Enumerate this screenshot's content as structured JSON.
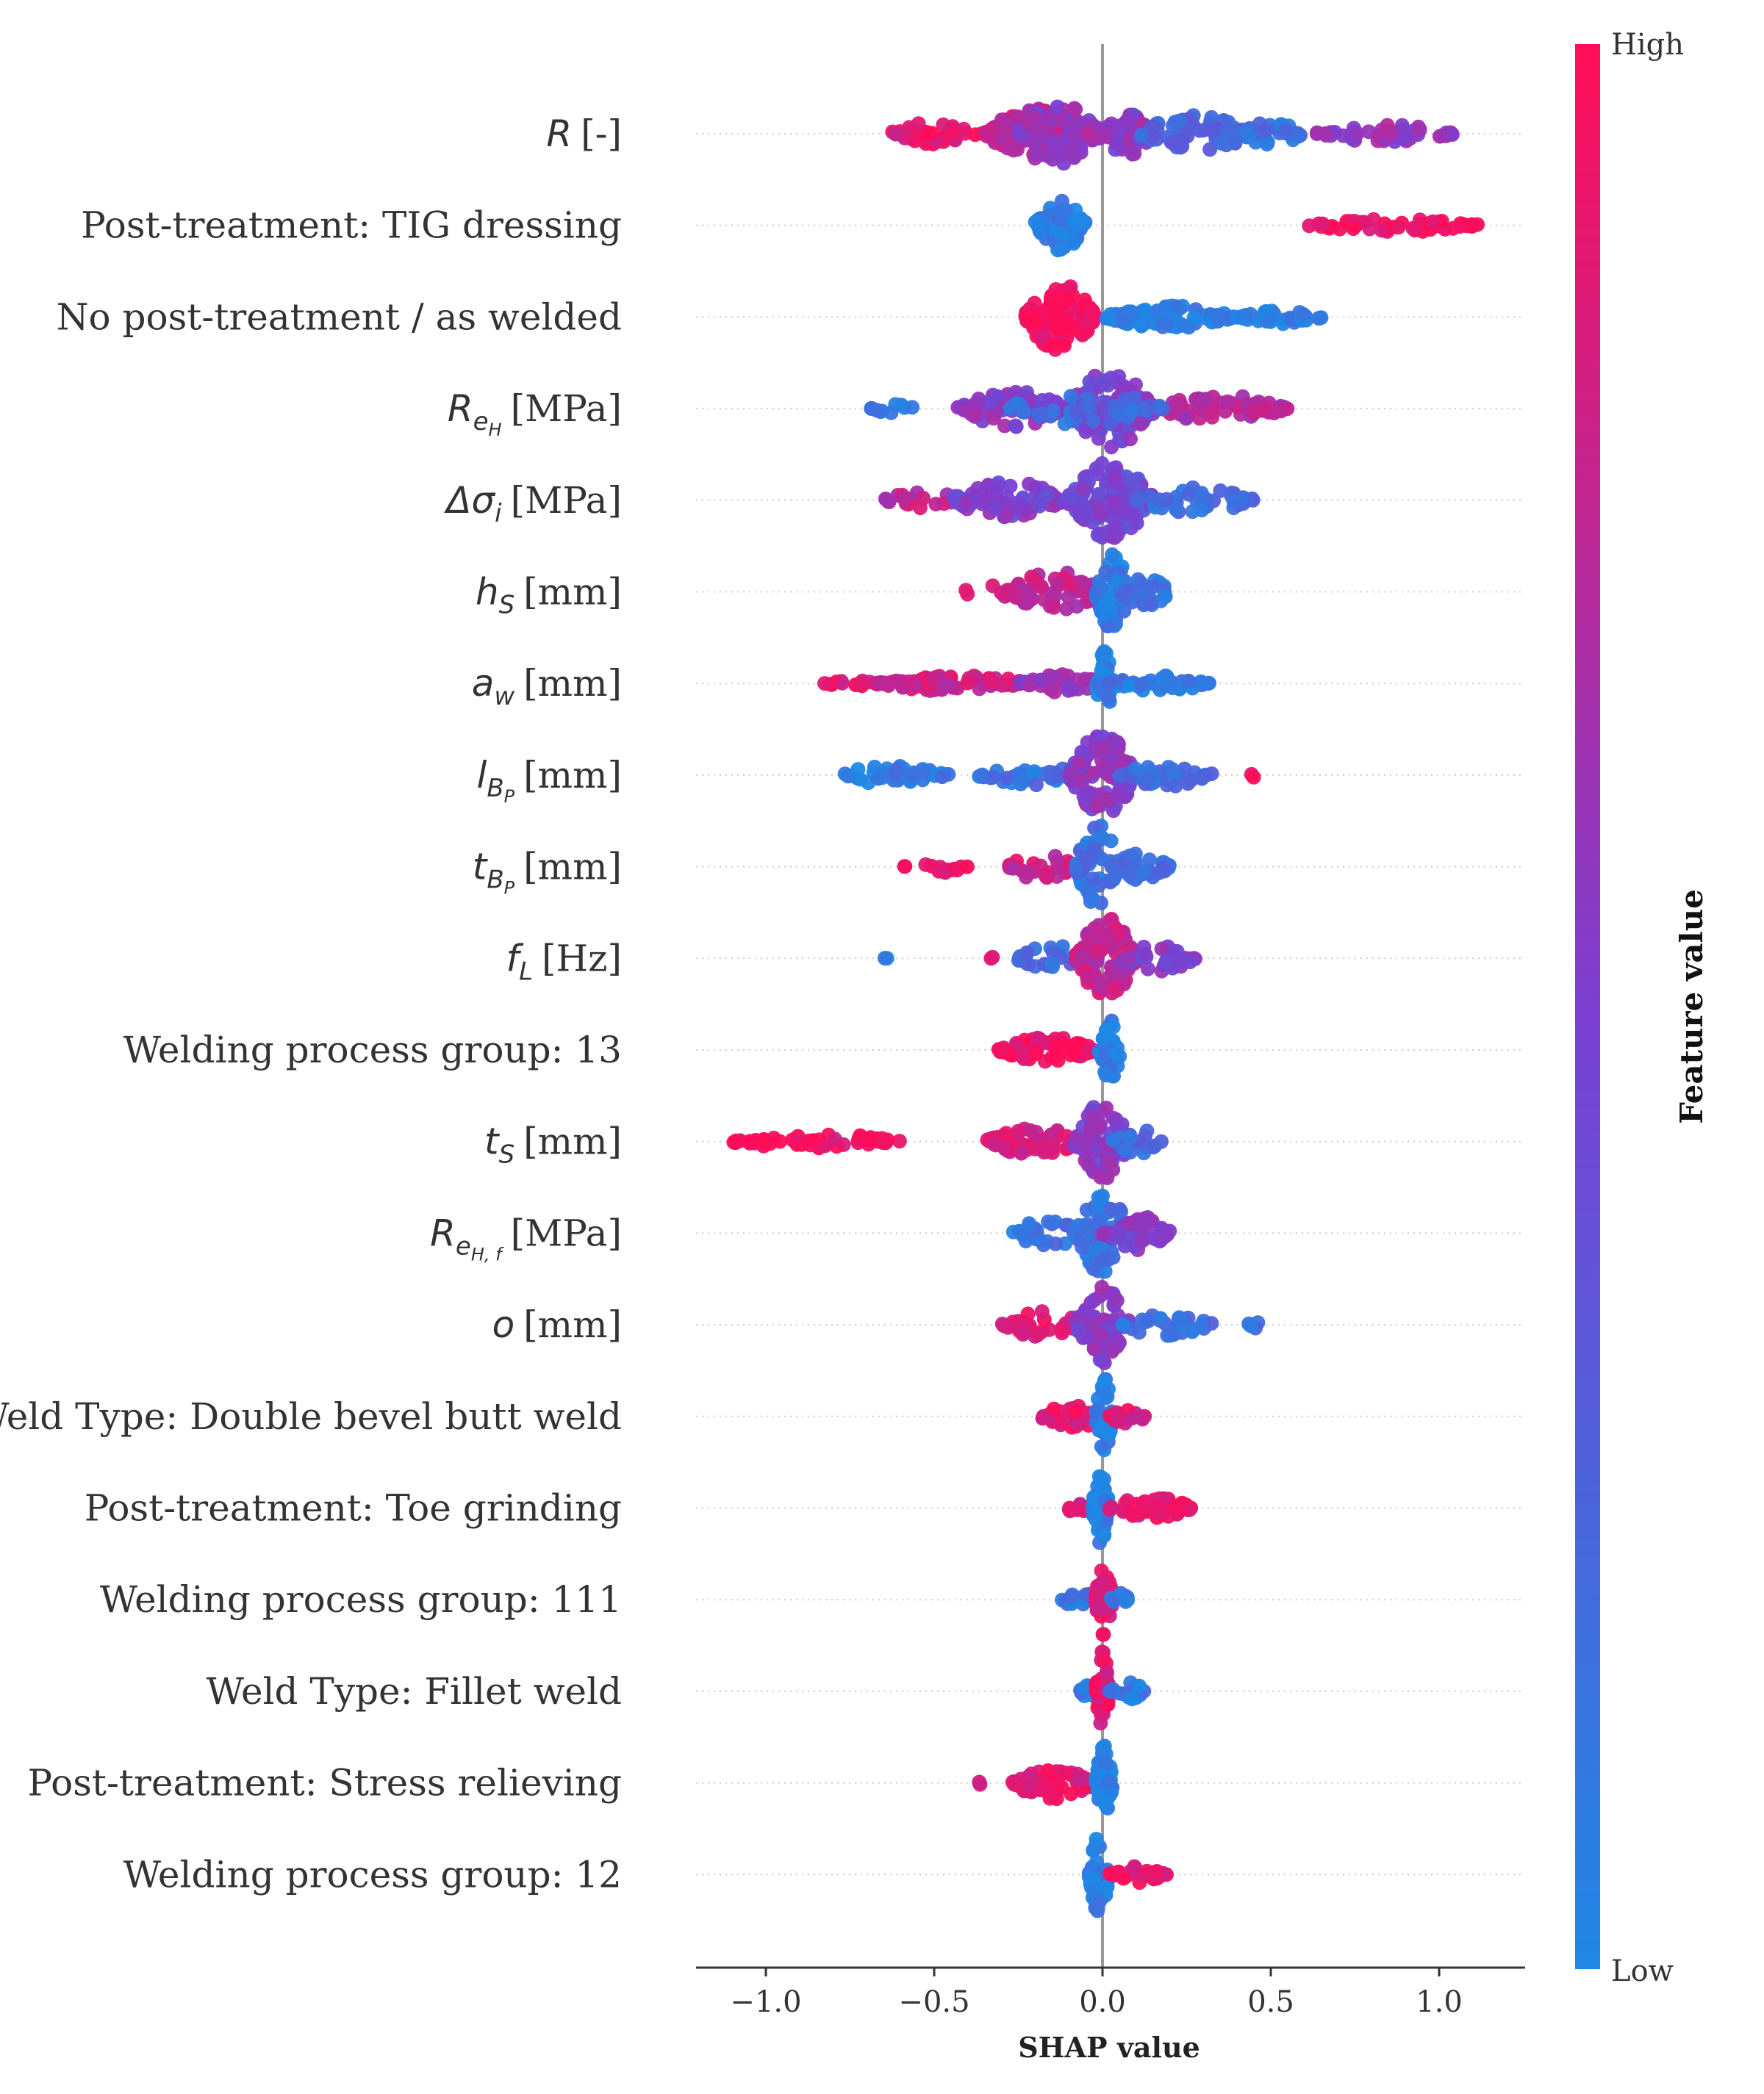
{
  "chart_data": {
    "type": "scatter",
    "subtype": "beeswarm",
    "title": "",
    "xlabel": "SHAP value",
    "ylabel": "",
    "xlim": [
      -1.2,
      1.27
    ],
    "xticks": [
      -1.0,
      -0.5,
      0.0,
      0.5,
      1.0
    ],
    "xtick_labels": [
      "−1.0",
      "−0.5",
      "0.0",
      "0.5",
      "1.0"
    ],
    "grid": false,
    "zero_line": true,
    "colorbar": {
      "title": "Feature value",
      "high_label": "High",
      "low_label": "Low",
      "high_color": "#ff0d57",
      "mid_color": "#7c3fd1",
      "low_color": "#1e88e5"
    },
    "features": [
      {
        "name": "R",
        "sub": "",
        "subsub": "",
        "unit": "[-]",
        "groups": [
          [
            -0.65,
            -0.35,
            "high",
            40,
            0.25,
            0.1
          ],
          [
            -0.35,
            -0.05,
            "high",
            120,
            0.55,
            0.25
          ],
          [
            -0.25,
            0.0,
            "mid",
            90,
            0.7,
            0.4
          ],
          [
            0.0,
            0.15,
            "mid",
            60,
            0.5,
            0.45
          ],
          [
            0.1,
            0.45,
            "low",
            80,
            0.4,
            0.75
          ],
          [
            0.4,
            0.6,
            "low",
            30,
            0.25,
            0.85
          ],
          [
            0.63,
            1.05,
            "mid",
            50,
            0.2,
            0.4
          ]
        ]
      },
      {
        "name": "Post-treatment: TIG dressing",
        "sub": "",
        "subsub": "",
        "unit": "",
        "groups": [
          [
            -0.2,
            -0.05,
            "low",
            70,
            0.55,
            0.95
          ],
          [
            0.61,
            1.12,
            "high",
            50,
            0.15,
            0.02
          ]
        ]
      },
      {
        "name": "No post-treatment / as welded",
        "sub": "",
        "subsub": "",
        "unit": "",
        "groups": [
          [
            -0.23,
            -0.02,
            "high",
            130,
            0.8,
            0.02
          ],
          [
            0.0,
            0.4,
            "low",
            80,
            0.25,
            0.95
          ],
          [
            0.4,
            0.66,
            "low",
            35,
            0.15,
            0.95
          ]
        ]
      },
      {
        "name": "R",
        "sub": "e",
        "subsub": "H",
        "unit": "[MPa]",
        "groups": [
          [
            -0.7,
            -0.55,
            "low",
            10,
            0.1,
            0.9
          ],
          [
            -0.43,
            -0.1,
            "mid",
            80,
            0.4,
            0.45
          ],
          [
            -0.1,
            0.15,
            "mid",
            120,
            0.85,
            0.5
          ],
          [
            0.15,
            0.55,
            "high",
            70,
            0.3,
            0.3
          ],
          [
            -0.3,
            0.2,
            "low",
            40,
            0.4,
            0.8
          ]
        ]
      },
      {
        "name": "Δσ",
        "sub": "i",
        "subsub": "",
        "unit": "[MPa]",
        "groups": [
          [
            -0.65,
            -0.4,
            "high",
            20,
            0.2,
            0.25
          ],
          [
            -0.45,
            -0.1,
            "mid",
            70,
            0.4,
            0.5
          ],
          [
            -0.1,
            0.15,
            "mid",
            140,
            0.85,
            0.55
          ],
          [
            0.1,
            0.45,
            "low",
            50,
            0.3,
            0.8
          ]
        ]
      },
      {
        "name": "h",
        "sub": "S",
        "subsub": "",
        "unit": "[mm]",
        "groups": [
          [
            -0.42,
            -0.25,
            "high",
            10,
            0.15,
            0.2
          ],
          [
            -0.28,
            0.0,
            "high",
            70,
            0.45,
            0.25
          ],
          [
            -0.02,
            0.08,
            "low",
            60,
            0.85,
            0.9
          ],
          [
            0.05,
            0.2,
            "low",
            30,
            0.35,
            0.85
          ]
        ]
      },
      {
        "name": "a",
        "sub": "w",
        "subsub": "",
        "unit": "[mm]",
        "groups": [
          [
            -0.83,
            -0.67,
            "high",
            15,
            0.1,
            0.1
          ],
          [
            -0.67,
            -0.2,
            "high",
            80,
            0.18,
            0.2
          ],
          [
            -0.25,
            0.0,
            "mid",
            30,
            0.2,
            0.4
          ],
          [
            -0.02,
            0.03,
            "low",
            30,
            0.75,
            0.95
          ],
          [
            0.02,
            0.32,
            "low",
            50,
            0.18,
            0.9
          ]
        ]
      },
      {
        "name": "l",
        "sub": "B",
        "subsub": "P",
        "unit": "[mm]",
        "groups": [
          [
            -0.8,
            -0.45,
            "low",
            40,
            0.2,
            0.9
          ],
          [
            -0.37,
            -0.05,
            "low",
            40,
            0.22,
            0.85
          ],
          [
            -0.1,
            0.1,
            "mid",
            100,
            0.9,
            0.45
          ],
          [
            0.05,
            0.33,
            "low",
            40,
            0.25,
            0.8
          ],
          [
            0.44,
            0.46,
            "high",
            2,
            0.05,
            0.05
          ]
        ]
      },
      {
        "name": "t",
        "sub": "B",
        "subsub": "P",
        "unit": "[mm]",
        "groups": [
          [
            -0.6,
            -0.4,
            "high",
            14,
            0.15,
            0.1
          ],
          [
            -0.28,
            -0.08,
            "high",
            30,
            0.3,
            0.2
          ],
          [
            -0.08,
            0.05,
            "low",
            60,
            0.95,
            0.85
          ],
          [
            0.03,
            0.2,
            "low",
            40,
            0.3,
            0.8
          ]
        ]
      },
      {
        "name": "f",
        "sub": "L",
        "subsub": "",
        "unit": "[Hz]",
        "groups": [
          [
            -0.65,
            -0.63,
            "low",
            2,
            0.05,
            0.9
          ],
          [
            -0.34,
            -0.32,
            "high",
            2,
            0.05,
            0.1
          ],
          [
            -0.25,
            -0.05,
            "low",
            25,
            0.3,
            0.8
          ],
          [
            -0.08,
            0.1,
            "high",
            100,
            0.9,
            0.25
          ],
          [
            0.05,
            0.28,
            "mid",
            30,
            0.3,
            0.5
          ]
        ]
      },
      {
        "name": "Welding process group: 13",
        "sub": "",
        "subsub": "",
        "unit": "",
        "groups": [
          [
            -0.31,
            -0.02,
            "high",
            80,
            0.3,
            0.05
          ],
          [
            -0.01,
            0.06,
            "low",
            40,
            0.7,
            0.95
          ]
        ]
      },
      {
        "name": "t",
        "sub": "S",
        "subsub": "",
        "unit": "[mm]",
        "groups": [
          [
            -1.1,
            -0.6,
            "high",
            50,
            0.18,
            0.05
          ],
          [
            -0.35,
            -0.05,
            "high",
            60,
            0.3,
            0.15
          ],
          [
            -0.08,
            0.08,
            "mid",
            90,
            0.85,
            0.45
          ],
          [
            0.03,
            0.18,
            "low",
            25,
            0.3,
            0.8
          ]
        ]
      },
      {
        "name": "R",
        "sub": "e",
        "subsub": "H, f",
        "unit": "[MPa]",
        "groups": [
          [
            -0.27,
            -0.05,
            "low",
            30,
            0.3,
            0.85
          ],
          [
            -0.08,
            0.08,
            "low",
            70,
            0.9,
            0.85
          ],
          [
            0.0,
            0.2,
            "mid",
            50,
            0.4,
            0.5
          ]
        ]
      },
      {
        "name": "o",
        "sub": "",
        "subsub": "",
        "unit": "[mm]",
        "groups": [
          [
            -0.3,
            -0.05,
            "high",
            40,
            0.3,
            0.15
          ],
          [
            -0.08,
            0.08,
            "mid",
            80,
            0.85,
            0.45
          ],
          [
            0.05,
            0.33,
            "low",
            30,
            0.25,
            0.85
          ],
          [
            0.43,
            0.47,
            "low",
            4,
            0.1,
            0.85
          ]
        ]
      },
      {
        "name": "Weld Type: Double bevel butt weld",
        "sub": "",
        "subsub": "",
        "unit": "",
        "groups": [
          [
            -0.18,
            0.0,
            "high",
            40,
            0.28,
            0.1
          ],
          [
            -0.02,
            0.03,
            "low",
            40,
            0.85,
            0.95
          ],
          [
            0.02,
            0.13,
            "high",
            20,
            0.18,
            0.15
          ]
        ]
      },
      {
        "name": "Post-treatment: Toe grinding",
        "sub": "",
        "subsub": "",
        "unit": "",
        "groups": [
          [
            -0.11,
            0.0,
            "high",
            15,
            0.15,
            0.15
          ],
          [
            -0.03,
            0.02,
            "low",
            40,
            0.85,
            0.95
          ],
          [
            0.02,
            0.27,
            "high",
            50,
            0.25,
            0.1
          ]
        ]
      },
      {
        "name": "Welding process group: 111",
        "sub": "",
        "subsub": "",
        "unit": "",
        "groups": [
          [
            -0.13,
            0.0,
            "low",
            20,
            0.15,
            0.9
          ],
          [
            -0.02,
            0.03,
            "high",
            50,
            0.9,
            0.1
          ],
          [
            0.02,
            0.08,
            "low",
            10,
            0.15,
            0.9
          ]
        ]
      },
      {
        "name": "Weld Type: Fillet weld",
        "sub": "",
        "subsub": "",
        "unit": "",
        "groups": [
          [
            -0.07,
            0.0,
            "low",
            10,
            0.15,
            0.9
          ],
          [
            -0.02,
            0.02,
            "high",
            50,
            0.9,
            0.1
          ],
          [
            0.02,
            0.13,
            "low",
            20,
            0.2,
            0.9
          ]
        ]
      },
      {
        "name": "Post-treatment: Stress relieving",
        "sub": "",
        "subsub": "",
        "unit": "",
        "groups": [
          [
            -0.37,
            -0.35,
            "high",
            2,
            0.05,
            0.1
          ],
          [
            -0.27,
            -0.02,
            "high",
            60,
            0.35,
            0.1
          ],
          [
            -0.02,
            0.03,
            "low",
            50,
            0.85,
            0.95
          ]
        ]
      },
      {
        "name": "Welding process group: 12",
        "sub": "",
        "subsub": "",
        "unit": "",
        "groups": [
          [
            -0.04,
            0.02,
            "low",
            50,
            0.85,
            0.95
          ],
          [
            0.02,
            0.19,
            "high",
            30,
            0.18,
            0.1
          ]
        ]
      }
    ]
  }
}
